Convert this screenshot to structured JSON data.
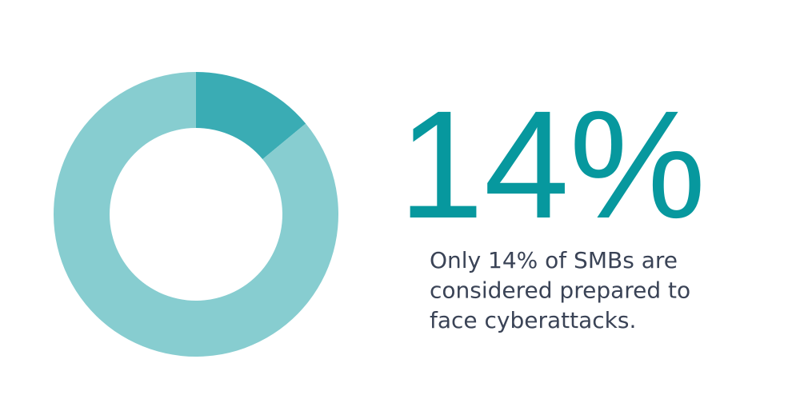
{
  "chart_data": {
    "type": "donut",
    "values": [
      14,
      86
    ],
    "value_labels": [
      "14%",
      null
    ],
    "colors": [
      "#3aacb4",
      "#87cdd0"
    ],
    "caption": [
      "Only 14% of SMBs are",
      "considered prepared to",
      "face cyberattacks."
    ]
  }
}
